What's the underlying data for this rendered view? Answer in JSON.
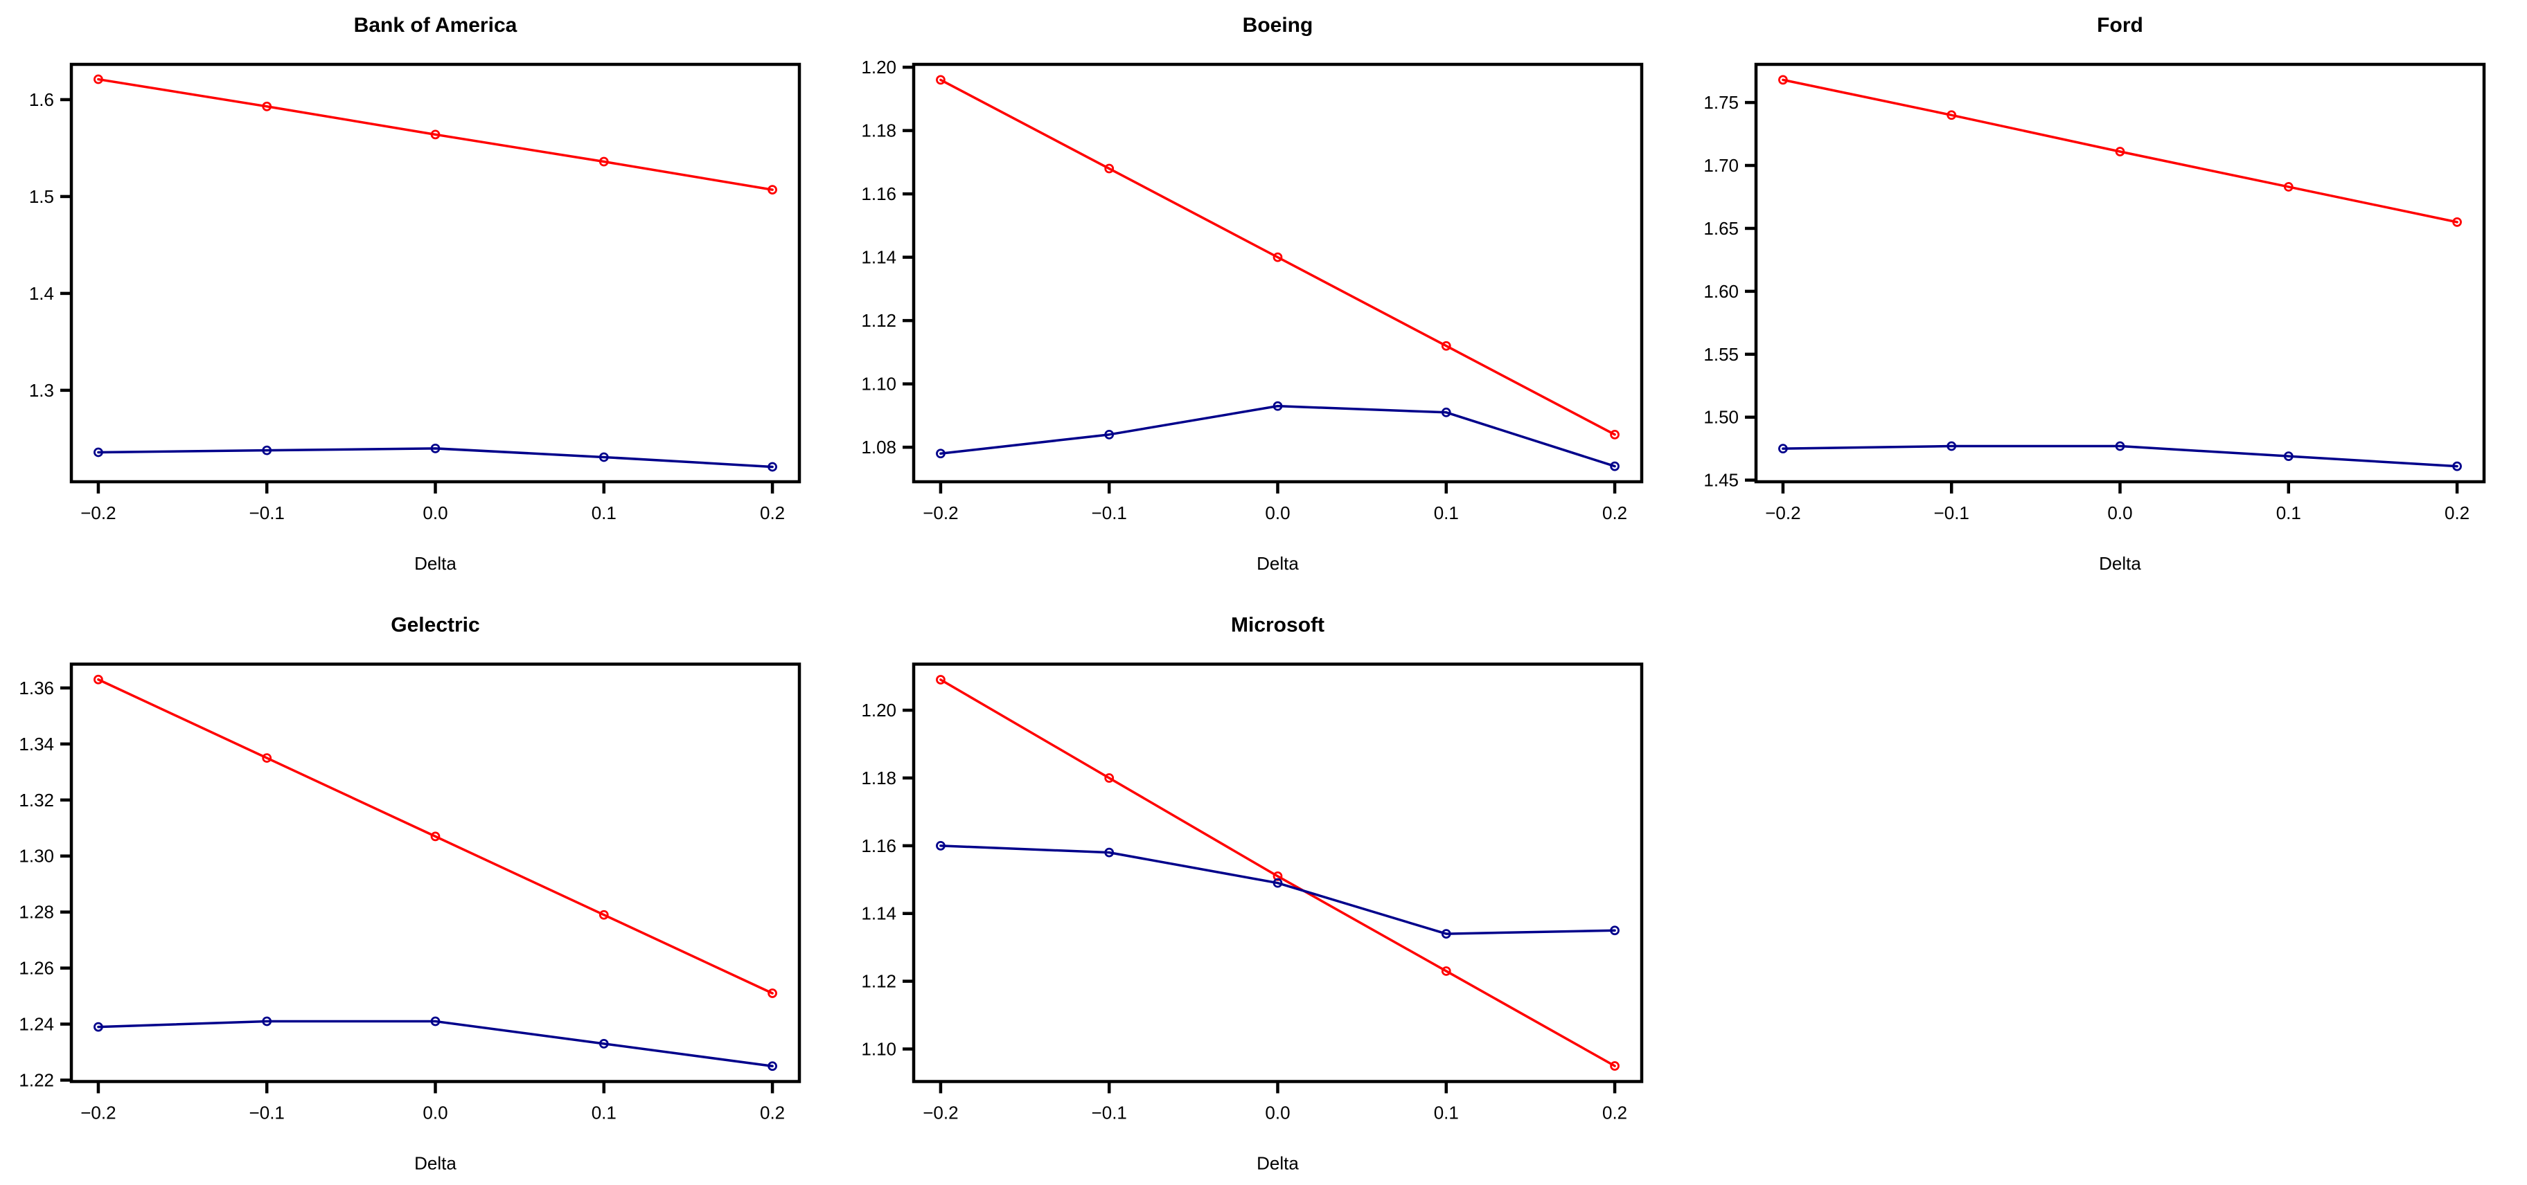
{
  "figure": {
    "background_color": "#ffffff",
    "axis_color": "#000000",
    "text_color": "#000000",
    "layout": "2 rows x 3 columns, last cell empty",
    "series_palette": {
      "upper": "#ff0000",
      "lower": "#00008b"
    }
  },
  "chart_data": [
    {
      "type": "line",
      "title": "Bank of America",
      "xlabel": "Delta",
      "x": [
        -0.2,
        -0.1,
        0.0,
        0.1,
        0.2
      ],
      "xtick_labels": [
        "−0.2",
        "−0.1",
        "0.0",
        "0.1",
        "0.2"
      ],
      "series": [
        {
          "name": "red",
          "color": "#ff0000",
          "marker": "open-circle",
          "values": [
            1.621,
            1.593,
            1.564,
            1.536,
            1.507
          ]
        },
        {
          "name": "blue",
          "color": "#00008b",
          "marker": "open-circle",
          "values": [
            1.236,
            1.238,
            1.24,
            1.231,
            1.221
          ]
        }
      ],
      "yticks": [
        1.3,
        1.4,
        1.5,
        1.6
      ],
      "ytick_labels": [
        "1.3",
        "1.4",
        "1.5",
        "1.6"
      ],
      "ylim": [
        1.2056,
        1.6364
      ],
      "xlim": [
        -0.216,
        0.216
      ],
      "grid": false,
      "legend": "none"
    },
    {
      "type": "line",
      "title": "Boeing",
      "xlabel": "Delta",
      "x": [
        -0.2,
        -0.1,
        0.0,
        0.1,
        0.2
      ],
      "xtick_labels": [
        "−0.2",
        "−0.1",
        "0.0",
        "0.1",
        "0.2"
      ],
      "series": [
        {
          "name": "red",
          "color": "#ff0000",
          "marker": "open-circle",
          "values": [
            1.196,
            1.168,
            1.14,
            1.112,
            1.084
          ]
        },
        {
          "name": "blue",
          "color": "#00008b",
          "marker": "open-circle",
          "values": [
            1.078,
            1.084,
            1.093,
            1.091,
            1.074
          ]
        }
      ],
      "yticks": [
        1.08,
        1.1,
        1.12,
        1.14,
        1.16,
        1.18,
        1.2
      ],
      "ytick_labels": [
        "1.08",
        "1.10",
        "1.12",
        "1.14",
        "1.16",
        "1.18",
        "1.20"
      ],
      "ylim": [
        1.0691,
        1.2009
      ],
      "xlim": [
        -0.216,
        0.216
      ],
      "grid": false,
      "legend": "none"
    },
    {
      "type": "line",
      "title": "Ford",
      "xlabel": "Delta",
      "x": [
        -0.2,
        -0.1,
        0.0,
        0.1,
        0.2
      ],
      "xtick_labels": [
        "−0.2",
        "−0.1",
        "0.0",
        "0.1",
        "0.2"
      ],
      "series": [
        {
          "name": "red",
          "color": "#ff0000",
          "marker": "open-circle",
          "values": [
            1.768,
            1.74,
            1.711,
            1.683,
            1.655
          ]
        },
        {
          "name": "blue",
          "color": "#00008b",
          "marker": "open-circle",
          "values": [
            1.475,
            1.477,
            1.477,
            1.469,
            1.461
          ]
        }
      ],
      "yticks": [
        1.45,
        1.5,
        1.55,
        1.6,
        1.65,
        1.7,
        1.75
      ],
      "ytick_labels": [
        "1.45",
        "1.50",
        "1.55",
        "1.60",
        "1.65",
        "1.70",
        "1.75"
      ],
      "ylim": [
        1.4487,
        1.7803
      ],
      "xlim": [
        -0.216,
        0.216
      ],
      "grid": false,
      "legend": "none"
    },
    {
      "type": "line",
      "title": "Gelectric",
      "xlabel": "Delta",
      "x": [
        -0.2,
        -0.1,
        0.0,
        0.1,
        0.2
      ],
      "xtick_labels": [
        "−0.2",
        "−0.1",
        "0.0",
        "0.1",
        "0.2"
      ],
      "series": [
        {
          "name": "red",
          "color": "#ff0000",
          "marker": "open-circle",
          "values": [
            1.363,
            1.335,
            1.307,
            1.279,
            1.251
          ]
        },
        {
          "name": "blue",
          "color": "#00008b",
          "marker": "open-circle",
          "values": [
            1.239,
            1.241,
            1.241,
            1.233,
            1.225
          ]
        }
      ],
      "yticks": [
        1.22,
        1.24,
        1.26,
        1.28,
        1.3,
        1.32,
        1.34,
        1.36
      ],
      "ytick_labels": [
        "1.22",
        "1.24",
        "1.26",
        "1.28",
        "1.30",
        "1.32",
        "1.34",
        "1.36"
      ],
      "ylim": [
        1.2195,
        1.3685
      ],
      "xlim": [
        -0.216,
        0.216
      ],
      "grid": false,
      "legend": "none"
    },
    {
      "type": "line",
      "title": "Microsoft",
      "xlabel": "Delta",
      "x": [
        -0.2,
        -0.1,
        0.0,
        0.1,
        0.2
      ],
      "xtick_labels": [
        "−0.2",
        "−0.1",
        "0.0",
        "0.1",
        "0.2"
      ],
      "series": [
        {
          "name": "red",
          "color": "#ff0000",
          "marker": "open-circle",
          "values": [
            1.209,
            1.18,
            1.151,
            1.123,
            1.095
          ]
        },
        {
          "name": "blue",
          "color": "#00008b",
          "marker": "open-circle",
          "values": [
            1.16,
            1.158,
            1.149,
            1.134,
            1.135
          ]
        }
      ],
      "yticks": [
        1.1,
        1.12,
        1.14,
        1.16,
        1.18,
        1.2
      ],
      "ytick_labels": [
        "1.10",
        "1.12",
        "1.14",
        "1.16",
        "1.18",
        "1.20"
      ],
      "ylim": [
        1.0904,
        1.2136
      ],
      "xlim": [
        -0.216,
        0.216
      ],
      "grid": false,
      "legend": "none"
    }
  ]
}
